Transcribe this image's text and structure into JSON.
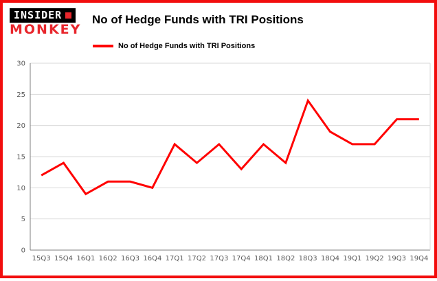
{
  "logo": {
    "line1": "INSIDER",
    "line2": "MONKEY"
  },
  "title": "No of Hedge Funds with TRI Positions",
  "legend": {
    "label": "No of Hedge Funds with TRI Positions"
  },
  "colors": {
    "frame_border": "#f20d0d",
    "logo_red": "#e8262c",
    "line": "#ff0000",
    "gridline": "#d9d9d9",
    "axis": "#7f7f7f",
    "tick_text": "#595959"
  },
  "chart_data": {
    "type": "line",
    "title": "No of Hedge Funds with TRI Positions",
    "series_name": "No of Hedge Funds with TRI Positions",
    "categories": [
      "15Q3",
      "15Q4",
      "16Q1",
      "16Q2",
      "16Q3",
      "16Q4",
      "17Q1",
      "17Q2",
      "17Q3",
      "17Q4",
      "18Q1",
      "18Q2",
      "18Q3",
      "18Q4",
      "19Q1",
      "19Q2",
      "19Q3",
      "19Q4"
    ],
    "values": [
      12,
      14,
      9,
      11,
      11,
      10,
      17,
      14,
      17,
      13,
      17,
      14,
      24,
      19,
      17,
      17,
      21,
      21
    ],
    "xlabel": "",
    "ylabel": "",
    "ylim": [
      0,
      30
    ],
    "yticks": [
      0,
      5,
      10,
      15,
      20,
      25,
      30
    ],
    "grid": true,
    "legend_position": "top-left",
    "line_color": "#ff0000",
    "markers": false
  }
}
